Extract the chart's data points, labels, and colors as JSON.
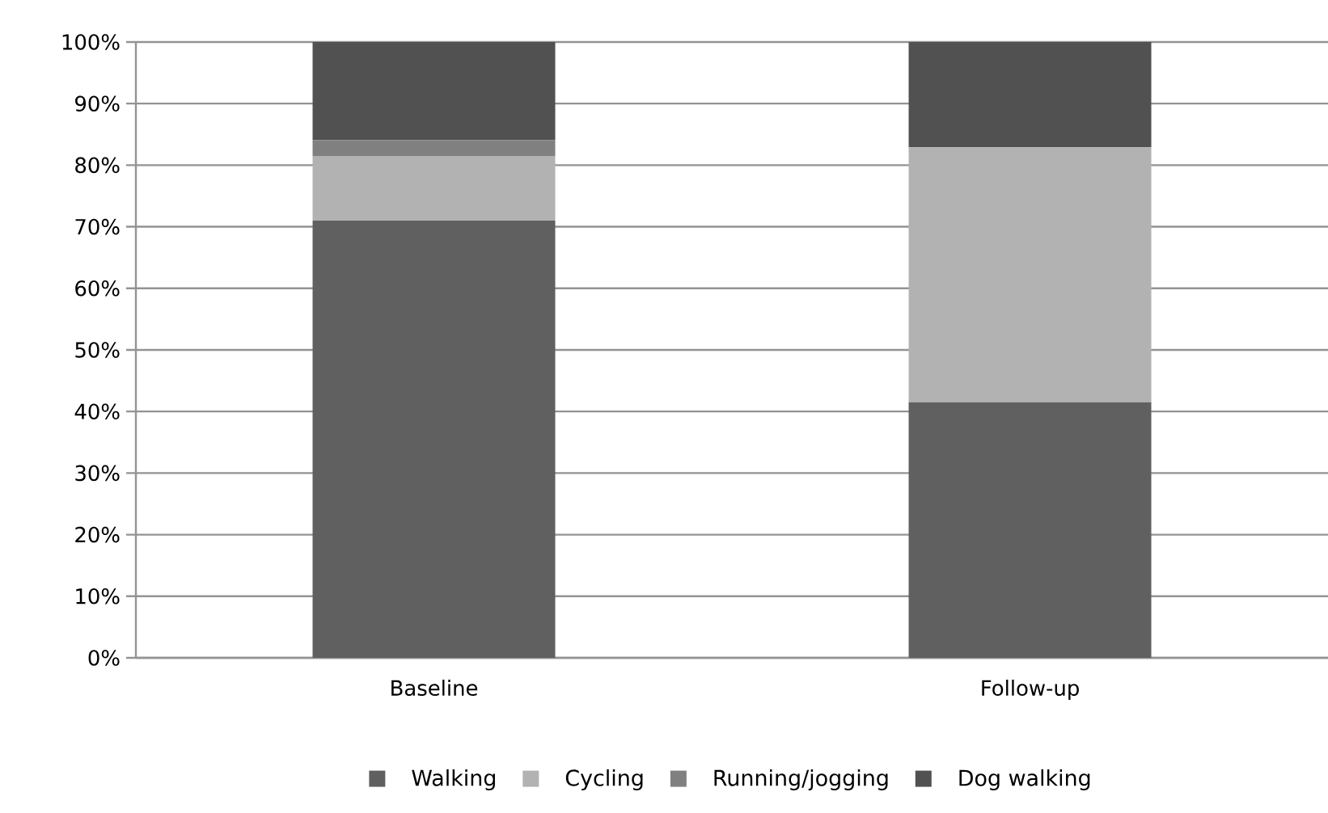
{
  "chart_data": {
    "type": "bar",
    "stacked": true,
    "categories": [
      "Baseline",
      "Follow-up"
    ],
    "series": [
      {
        "name": "Walking",
        "color": "#606060",
        "values": [
          71.0,
          41.5
        ]
      },
      {
        "name": "Cycling",
        "color": "#b2b2b2",
        "values": [
          10.5,
          41.4
        ]
      },
      {
        "name": "Running/jogging",
        "color": "#808080",
        "values": [
          2.6,
          0
        ]
      },
      {
        "name": "Dog walking",
        "color": "#515151",
        "values": [
          15.9,
          17.1
        ]
      }
    ],
    "ylim": [
      0,
      100
    ],
    "yticks": [
      {
        "value": 0,
        "label": "0%"
      },
      {
        "value": 10,
        "label": "10%"
      },
      {
        "value": 20,
        "label": "20%"
      },
      {
        "value": 30,
        "label": "30%"
      },
      {
        "value": 40,
        "label": "40%"
      },
      {
        "value": 50,
        "label": "50%"
      },
      {
        "value": 60,
        "label": "60%"
      },
      {
        "value": 70,
        "label": "70%"
      },
      {
        "value": 80,
        "label": "80%"
      },
      {
        "value": 90,
        "label": "90%"
      },
      {
        "value": 100,
        "label": "100%"
      }
    ],
    "grid": "y",
    "legend": "bottom"
  }
}
